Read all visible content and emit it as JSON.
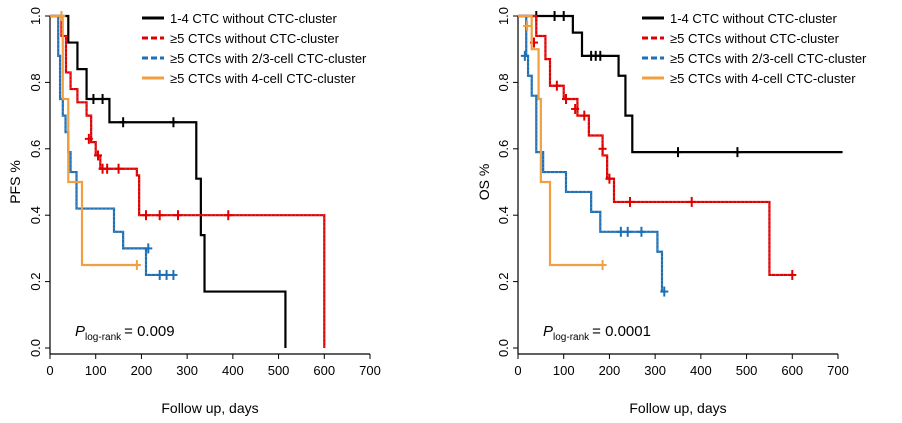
{
  "colors": {
    "black": "#000000",
    "red": "#e00000",
    "blue": "#1f6fb4",
    "orange": "#f0a040"
  },
  "chart_data": [
    {
      "type": "line",
      "subtype": "kaplan-meier",
      "ylabel": "PFS %",
      "xlabel": "Follow up, days",
      "xlim": [
        0,
        700
      ],
      "ylim": [
        0,
        1.0
      ],
      "x_ticks": [
        "0",
        "100",
        "200",
        "300",
        "400",
        "500",
        "600",
        "700"
      ],
      "y_ticks": [
        "0.0",
        "0.2",
        "0.4",
        "0.6",
        "0.8",
        "1.0"
      ],
      "grid": false,
      "legend_position": "top-right",
      "pvalue": {
        "symbol": "P",
        "subscript": "log-rank",
        "value": "= 0.009"
      },
      "series": [
        {
          "name": "1-4 CTC without CTC-cluster",
          "color": "black",
          "dashed": false,
          "steps": [
            [
              0,
              1.0
            ],
            [
              40,
              0.92
            ],
            [
              60,
              0.84
            ],
            [
              80,
              0.75
            ],
            [
              130,
              0.68
            ],
            [
              315,
              0.68
            ],
            [
              320,
              0.51
            ],
            [
              330,
              0.34
            ],
            [
              338,
              0.17
            ],
            [
              515,
              0.17
            ],
            [
              515,
              0.0
            ]
          ],
          "censor": [
            [
              95,
              0.75
            ],
            [
              115,
              0.75
            ],
            [
              160,
              0.68
            ],
            [
              270,
              0.68
            ]
          ]
        },
        {
          "name": "≥5 CTCs without CTC-cluster",
          "color": "red",
          "dashed": true,
          "steps": [
            [
              0,
              1.0
            ],
            [
              25,
              0.94
            ],
            [
              35,
              0.83
            ],
            [
              45,
              0.78
            ],
            [
              60,
              0.74
            ],
            [
              80,
              0.7
            ],
            [
              90,
              0.62
            ],
            [
              100,
              0.58
            ],
            [
              110,
              0.54
            ],
            [
              190,
              0.52
            ],
            [
              195,
              0.4
            ],
            [
              600,
              0.4
            ],
            [
              600,
              0.0
            ]
          ],
          "censor": [
            [
              85,
              0.63
            ],
            [
              105,
              0.58
            ],
            [
              115,
              0.54
            ],
            [
              125,
              0.54
            ],
            [
              150,
              0.54
            ],
            [
              210,
              0.4
            ],
            [
              240,
              0.4
            ],
            [
              280,
              0.4
            ],
            [
              390,
              0.4
            ]
          ]
        },
        {
          "name": "≥5 CTCs with 2/3-cell CTC-cluster",
          "color": "blue",
          "dashed": true,
          "steps": [
            [
              0,
              1.0
            ],
            [
              18,
              0.88
            ],
            [
              22,
              0.75
            ],
            [
              28,
              0.7
            ],
            [
              34,
              0.65
            ],
            [
              40,
              0.59
            ],
            [
              45,
              0.53
            ],
            [
              58,
              0.42
            ],
            [
              140,
              0.35
            ],
            [
              160,
              0.3
            ],
            [
              210,
              0.22
            ],
            [
              260,
              0.22
            ]
          ],
          "censor": [
            [
              215,
              0.3
            ],
            [
              240,
              0.22
            ],
            [
              255,
              0.22
            ],
            [
              270,
              0.22
            ]
          ]
        },
        {
          "name": "≥5 CTCs with 4-cell CTC-cluster",
          "color": "orange",
          "dashed": false,
          "steps": [
            [
              0,
              1.0
            ],
            [
              28,
              0.75
            ],
            [
              40,
              0.5
            ],
            [
              70,
              0.25
            ],
            [
              190,
              0.25
            ]
          ],
          "censor": [
            [
              25,
              1.0
            ],
            [
              190,
              0.25
            ]
          ]
        }
      ]
    },
    {
      "type": "line",
      "subtype": "kaplan-meier",
      "ylabel": "OS %",
      "xlabel": "Follow up, days",
      "xlim": [
        0,
        700
      ],
      "ylim": [
        0,
        1.0
      ],
      "x_ticks": [
        "0",
        "100",
        "200",
        "300",
        "400",
        "500",
        "600",
        "700"
      ],
      "y_ticks": [
        "0.0",
        "0.2",
        "0.4",
        "0.6",
        "0.8",
        "1.0"
      ],
      "grid": false,
      "legend_position": "top-right",
      "pvalue": {
        "symbol": "P",
        "subscript": "log-rank",
        "value": "= 0.0001"
      },
      "series": [
        {
          "name": "1-4 CTC without CTC-cluster",
          "color": "black",
          "dashed": false,
          "steps": [
            [
              0,
              1.0
            ],
            [
              120,
              0.95
            ],
            [
              140,
              0.88
            ],
            [
              150,
              0.88
            ],
            [
              220,
              0.82
            ],
            [
              235,
              0.7
            ],
            [
              250,
              0.59
            ],
            [
              710,
              0.59
            ]
          ],
          "censor": [
            [
              40,
              1.0
            ],
            [
              80,
              1.0
            ],
            [
              100,
              1.0
            ],
            [
              160,
              0.88
            ],
            [
              170,
              0.88
            ],
            [
              180,
              0.88
            ],
            [
              350,
              0.59
            ],
            [
              480,
              0.59
            ]
          ]
        },
        {
          "name": "≥5 CTCs without CTC-cluster",
          "color": "red",
          "dashed": true,
          "steps": [
            [
              0,
              1.0
            ],
            [
              40,
              0.94
            ],
            [
              60,
              0.87
            ],
            [
              70,
              0.79
            ],
            [
              100,
              0.75
            ],
            [
              130,
              0.7
            ],
            [
              155,
              0.64
            ],
            [
              185,
              0.58
            ],
            [
              195,
              0.51
            ],
            [
              210,
              0.44
            ],
            [
              545,
              0.44
            ],
            [
              550,
              0.22
            ],
            [
              600,
              0.22
            ]
          ],
          "censor": [
            [
              35,
              0.92
            ],
            [
              85,
              0.79
            ],
            [
              105,
              0.75
            ],
            [
              125,
              0.72
            ],
            [
              145,
              0.7
            ],
            [
              185,
              0.6
            ],
            [
              200,
              0.51
            ],
            [
              245,
              0.44
            ],
            [
              380,
              0.44
            ],
            [
              600,
              0.22
            ]
          ]
        },
        {
          "name": "≥5 CTCs with 2/3-cell CTC-cluster",
          "color": "blue",
          "dashed": true,
          "steps": [
            [
              0,
              1.0
            ],
            [
              18,
              0.88
            ],
            [
              22,
              0.82
            ],
            [
              30,
              0.76
            ],
            [
              40,
              0.59
            ],
            [
              55,
              0.53
            ],
            [
              105,
              0.47
            ],
            [
              160,
              0.41
            ],
            [
              180,
              0.35
            ],
            [
              305,
              0.29
            ],
            [
              315,
              0.17
            ],
            [
              320,
              0.17
            ]
          ],
          "censor": [
            [
              15,
              0.88
            ],
            [
              225,
              0.35
            ],
            [
              240,
              0.35
            ],
            [
              270,
              0.35
            ],
            [
              320,
              0.17
            ]
          ]
        },
        {
          "name": "≥5 CTCs with 4-cell CTC-cluster",
          "color": "orange",
          "dashed": false,
          "steps": [
            [
              0,
              1.0
            ],
            [
              30,
              0.9
            ],
            [
              45,
              0.75
            ],
            [
              50,
              0.5
            ],
            [
              70,
              0.25
            ],
            [
              185,
              0.25
            ]
          ],
          "censor": [
            [
              20,
              0.97
            ],
            [
              185,
              0.25
            ]
          ]
        }
      ]
    }
  ]
}
